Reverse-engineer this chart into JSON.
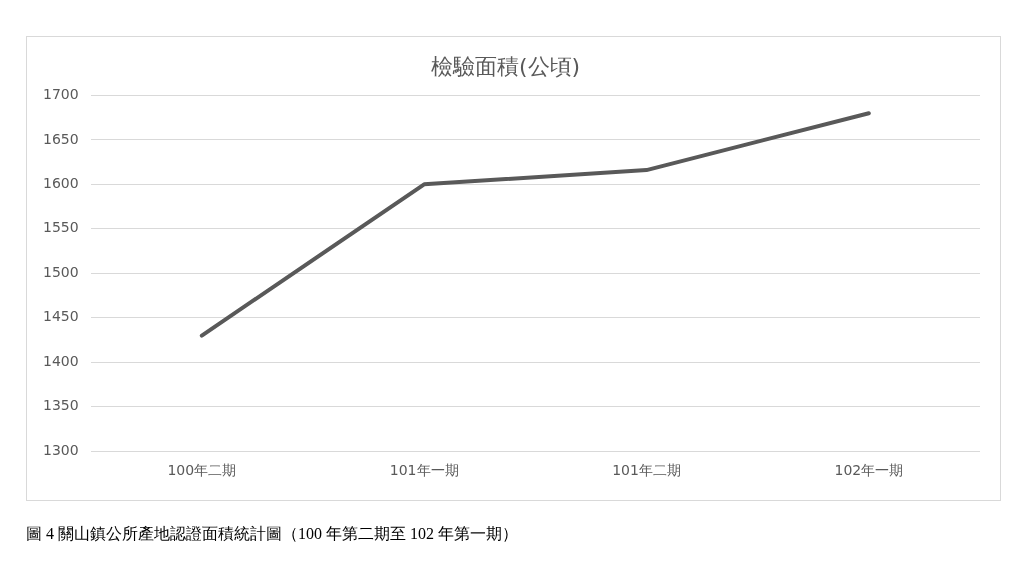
{
  "chart_data": {
    "type": "line",
    "title": "檢驗面積(公頃)",
    "categories": [
      "100年二期",
      "101年一期",
      "101年二期",
      "102年一期"
    ],
    "series": [
      {
        "color": "#595959",
        "values": [
          1430,
          1600,
          1616,
          1680
        ]
      }
    ],
    "ylim": [
      1300,
      1700
    ],
    "yticks": [
      1300,
      1350,
      1400,
      1450,
      1500,
      1550,
      1600,
      1650,
      1700
    ],
    "grid": "y",
    "legend": false,
    "marker": "none",
    "line_style": "solid",
    "annotations": [
      "圖 4 關山鎮公所產地認證面積統計圖（100 年第二期至 102 年第一期）"
    ]
  }
}
